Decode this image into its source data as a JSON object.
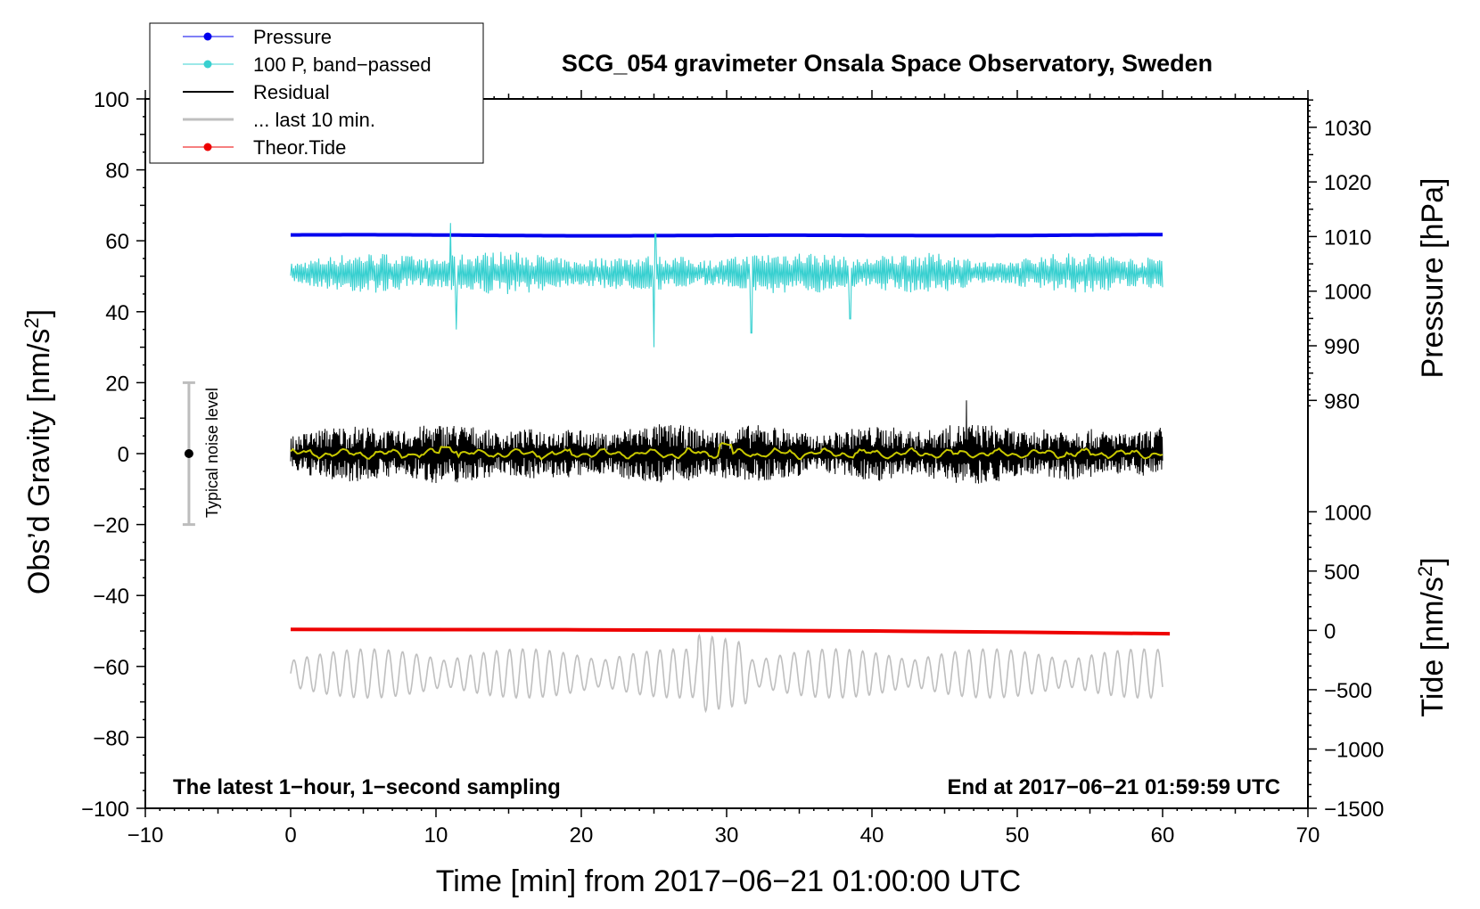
{
  "chart_data": {
    "type": "line",
    "title": "SCG_054 gravimeter Onsala Space Observatory, Sweden",
    "xlabel": "Time [min] from 2017−06−21 01:00:00 UTC",
    "ylabel_left": "Obs’d Gravity [nm/s",
    "ylabel_left_sup": "2",
    "ylabel_left_close": "]",
    "ylabel_right_pressure": "Pressure [hPa]",
    "ylabel_right_tide": "Tide [nm/s",
    "ylabel_right_tide_sup": "2",
    "ylabel_right_tide_close": "]",
    "xlim": [
      -10,
      70
    ],
    "ylim_left": [
      -100,
      100
    ],
    "x_ticks": [
      {
        "v": -10,
        "label": "−10"
      },
      {
        "v": 0,
        "label": "0"
      },
      {
        "v": 10,
        "label": "10"
      },
      {
        "v": 20,
        "label": "20"
      },
      {
        "v": 30,
        "label": "30"
      },
      {
        "v": 40,
        "label": "40"
      },
      {
        "v": 50,
        "label": "50"
      },
      {
        "v": 60,
        "label": "60"
      },
      {
        "v": 70,
        "label": "70"
      }
    ],
    "y_ticks_left": [
      {
        "v": 100,
        "label": "100"
      },
      {
        "v": 80,
        "label": "80"
      },
      {
        "v": 60,
        "label": "60"
      },
      {
        "v": 40,
        "label": "40"
      },
      {
        "v": 20,
        "label": "20"
      },
      {
        "v": 0,
        "label": "0"
      },
      {
        "v": -20,
        "label": "−20"
      },
      {
        "v": -40,
        "label": "−40"
      },
      {
        "v": -60,
        "label": "−60"
      },
      {
        "v": -80,
        "label": "−80"
      },
      {
        "v": -100,
        "label": "−100"
      }
    ],
    "pressure_axis": {
      "ticks": [
        {
          "v": 1030,
          "label": "1030"
        },
        {
          "v": 1020,
          "label": "1020"
        },
        {
          "v": 1010,
          "label": "1010"
        },
        {
          "v": 1000,
          "label": "1000"
        },
        {
          "v": 990,
          "label": "990"
        },
        {
          "v": 980,
          "label": "980"
        }
      ],
      "map": {
        "v1": 1030,
        "g1": 92,
        "v2": 980,
        "g2": 15
      }
    },
    "tide_axis": {
      "ticks": [
        {
          "v": 1000,
          "label": "1000"
        },
        {
          "v": 500,
          "label": "500"
        },
        {
          "v": 0,
          "label": "0"
        },
        {
          "v": -500,
          "label": "−500"
        },
        {
          "v": -1000,
          "label": "−1000"
        },
        {
          "v": -1500,
          "label": "−1500"
        }
      ],
      "map": {
        "v1": 1000,
        "g1": -16.4,
        "v2": -1500,
        "g2": -100
      }
    },
    "legend": [
      {
        "label": "Pressure",
        "color": "#0000ee",
        "marker": true
      },
      {
        "label": "100 P, band−passed",
        "color": "#38d0d0",
        "marker": true
      },
      {
        "label": "Residual",
        "color": "#000000",
        "marker": false
      },
      {
        "label": "... last 10 min.",
        "color": "#bfbfbf",
        "marker": false
      },
      {
        "label": "Theor.Tide",
        "color": "#ee0000",
        "marker": true
      }
    ],
    "series": [
      {
        "name": "Pressure",
        "color": "#0000ee",
        "x_range": [
          0,
          60
        ],
        "level": 1010.3,
        "unit": "hPa",
        "axis": "pressure"
      },
      {
        "name": "100 P, band−passed",
        "color": "#38d0d0",
        "x_range": [
          0,
          60
        ],
        "center": 51,
        "amplitude": 4,
        "spikes": [
          [
            11.4,
            -16
          ],
          [
            25.0,
            -21
          ],
          [
            31.7,
            -17
          ],
          [
            11.0,
            14
          ],
          [
            25.1,
            11
          ],
          [
            38.5,
            -13
          ]
        ]
      },
      {
        "name": "Residual",
        "color": "#000000",
        "x_range": [
          0,
          60
        ],
        "center": 0,
        "amplitude": 5.5,
        "peak": [
          46.5,
          15
        ]
      },
      {
        "name": "Residual smoothed",
        "color": "#c8c800",
        "x_range": [
          0,
          60
        ],
        "center": 0,
        "amplitude": 1.5
      },
      {
        "name": "... last 10 min.",
        "color": "#bfbfbf",
        "x_range": [
          0,
          60
        ],
        "center": -62,
        "amplitude": 6
      },
      {
        "name": "Theor.Tide",
        "color": "#ee0000",
        "x": [
          0,
          20,
          32,
          40,
          50,
          60.5
        ],
        "values": [
          8,
          5,
          0,
          -5,
          -15,
          -28
        ],
        "unit": "nm/s2",
        "axis": "tide"
      }
    ],
    "noise_bar": {
      "label": "Typical noise level",
      "x": -7,
      "y": 0,
      "range": [
        -20,
        20
      ]
    },
    "annotation_left": "The latest 1−hour, 1−second sampling",
    "annotation_right": "End at 2017−06−21 01:59:59 UTC"
  }
}
